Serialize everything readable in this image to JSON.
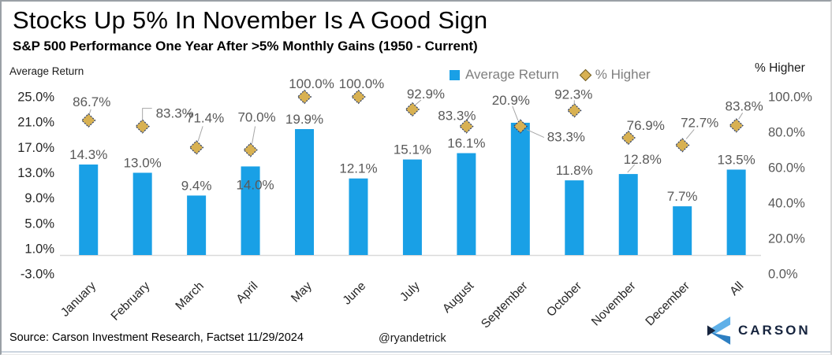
{
  "chart_data": {
    "type": "bar",
    "title": "Stocks Up 5% In November Is A Good Sign",
    "subtitle": "S&P 500 Performance One Year After >5% Monthly Gains (1950 - Current)",
    "categories": [
      "January",
      "February",
      "March",
      "April",
      "May",
      "June",
      "July",
      "August",
      "September",
      "October",
      "November",
      "December",
      "All"
    ],
    "series": [
      {
        "name": "Average Return",
        "type": "bar",
        "axis": "left",
        "color": "#19a0e6",
        "values": [
          14.3,
          13.0,
          9.4,
          14.0,
          19.9,
          12.1,
          15.1,
          16.1,
          20.9,
          11.8,
          12.8,
          7.7,
          13.5
        ],
        "labels": [
          "14.3%",
          "13.0%",
          "9.4%",
          "14.0%",
          "19.9%",
          "12.1%",
          "15.1%",
          "16.1%",
          "20.9%",
          "11.8%",
          "12.8%",
          "7.7%",
          "13.5%"
        ]
      },
      {
        "name": "% Higher",
        "type": "scatter",
        "marker": "diamond",
        "axis": "right",
        "color": "#d8b152",
        "values": [
          86.7,
          83.3,
          71.4,
          70.0,
          100.0,
          100.0,
          92.9,
          83.3,
          83.3,
          92.3,
          76.9,
          72.7,
          83.8
        ],
        "labels": [
          "86.7%",
          "83.3%",
          "71.4%",
          "70.0%",
          "100.0%",
          "100.0%",
          "92.9%",
          "83.3%",
          "83.3%",
          "92.3%",
          "76.9%",
          "72.7%",
          "83.8%"
        ]
      }
    ],
    "left_axis": {
      "title": "Average Return",
      "min": -3,
      "max": 25,
      "ticks": [
        25,
        21,
        17,
        13,
        9,
        5,
        1,
        -3
      ],
      "tick_labels": [
        "25.0%",
        "21.0%",
        "17.0%",
        "13.0%",
        "9.0%",
        "5.0%",
        "1.0%",
        "-3.0%"
      ]
    },
    "right_axis": {
      "title": "% Higher",
      "min": 0,
      "max": 100,
      "ticks": [
        100,
        80,
        60,
        40,
        20,
        0
      ],
      "tick_labels": [
        "100.0%",
        "80.0%",
        "60.0%",
        "40.0%",
        "20.0%",
        "0.0%"
      ]
    },
    "grid": false,
    "legend_position": "top"
  },
  "footer": {
    "source": "Source: Carson Investment Research, Factset 11/29/2024",
    "handle": "@ryandetrick",
    "brand": "CARSON"
  },
  "colors": {
    "bar": "#19a0e6",
    "marker_fill": "#d8b152",
    "marker_border": "#31436b",
    "data_label": "#595959",
    "left_tick_label": "#262626",
    "right_tick_label": "#595959",
    "category_label": "#262626",
    "legend_text": "#7f7f7f",
    "axis_line": "#d9d9d9",
    "leader_line": "#a6a6a6",
    "brand_navy": "#16243e",
    "logo_light_blue": "#5fb0e8",
    "logo_mid_blue": "#2e7fc2",
    "footer_rule": "#ccd5df"
  }
}
